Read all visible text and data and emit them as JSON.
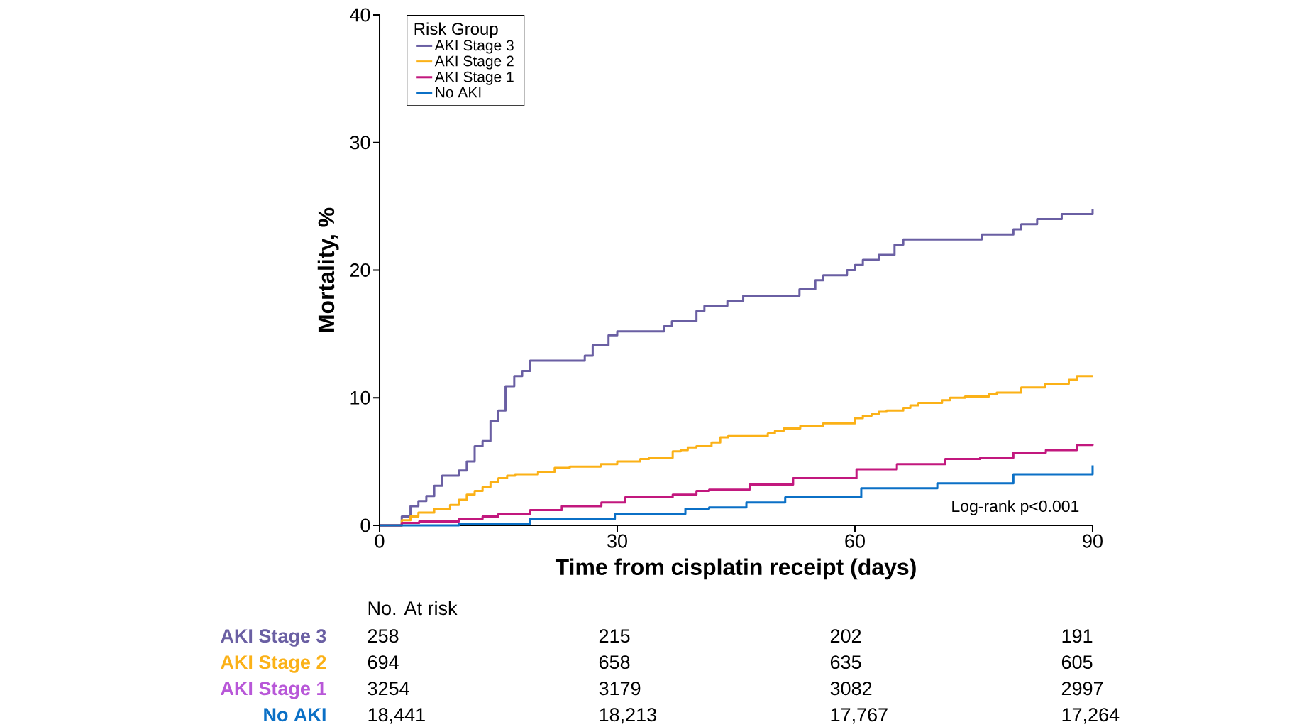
{
  "chart_data": {
    "type": "step",
    "xlabel": "Time from cisplatin receipt (days)",
    "ylabel": "Mortality, %",
    "legend_title": "Risk Group",
    "legend": "top left",
    "xlim": [
      0,
      90
    ],
    "ylim": [
      0,
      40
    ],
    "xticks": [
      0,
      30,
      60,
      90
    ],
    "yticks": [
      0,
      10,
      20,
      30,
      40
    ],
    "series": [
      {
        "name": "AKI Stage 3",
        "color": "#6a5fa3",
        "x": [
          0,
          2.8,
          3.9,
          4.9,
          5.9,
          6.9,
          7.9,
          10,
          11,
          12,
          13,
          14,
          15,
          15.9,
          17,
          18,
          19,
          25.9,
          26.9,
          28.9,
          30,
          35.9,
          36.9,
          40,
          41,
          43.9,
          45.9,
          53,
          55,
          56,
          59,
          60,
          61,
          63,
          65,
          66.1,
          76,
          80,
          81,
          83,
          86.1,
          90
        ],
        "values": [
          0,
          0.7,
          1.5,
          1.9,
          2.3,
          3.1,
          3.9,
          4.3,
          5.0,
          6.2,
          6.6,
          8.2,
          9.0,
          10.9,
          11.7,
          12.1,
          12.9,
          13.3,
          14.1,
          14.9,
          15.2,
          15.6,
          16.0,
          16.8,
          17.2,
          17.6,
          18.0,
          18.5,
          19.2,
          19.6,
          20.0,
          20.4,
          20.8,
          21.2,
          22.0,
          22.4,
          22.8,
          23.2,
          23.6,
          24.0,
          24.4,
          24.8
        ]
      },
      {
        "name": "AKI Stage 2",
        "color": "#fbb117",
        "x": [
          0,
          2.8,
          3.9,
          4.9,
          6.9,
          8.9,
          10,
          11,
          12,
          13,
          14,
          15,
          16.1,
          17.1,
          20,
          22.1,
          24,
          27.9,
          30,
          32.9,
          34,
          37,
          38,
          38.9,
          40,
          41.9,
          43,
          44,
          49,
          49.9,
          51,
          53.1,
          56,
          60,
          61,
          62.1,
          63,
          64,
          66.1,
          67,
          68,
          71,
          72,
          73.9,
          76.9,
          77.9,
          81,
          84,
          87,
          88,
          90
        ],
        "values": [
          0,
          0.4,
          0.7,
          1.0,
          1.3,
          1.6,
          2.0,
          2.4,
          2.7,
          3.0,
          3.4,
          3.7,
          3.9,
          4.0,
          4.2,
          4.5,
          4.6,
          4.8,
          5.0,
          5.2,
          5.3,
          5.8,
          5.9,
          6.1,
          6.2,
          6.5,
          6.9,
          7.0,
          7.2,
          7.4,
          7.6,
          7.8,
          8.0,
          8.4,
          8.6,
          8.7,
          8.9,
          9.0,
          9.2,
          9.4,
          9.6,
          9.8,
          10.0,
          10.1,
          10.3,
          10.4,
          10.8,
          11.1,
          11.4,
          11.7,
          11.7
        ]
      },
      {
        "name": "AKI Stage 1",
        "color": "#c2187e",
        "x": [
          0,
          2.8,
          5,
          10,
          13,
          15,
          19,
          23,
          28,
          31,
          37,
          40,
          41.6,
          46.7,
          52.2,
          60.2,
          65.3,
          71.4,
          75.8,
          80,
          84.1,
          88,
          90
        ],
        "values": [
          0,
          0.2,
          0.3,
          0.5,
          0.7,
          0.9,
          1.2,
          1.5,
          1.8,
          2.2,
          2.4,
          2.7,
          2.8,
          3.2,
          3.7,
          4.4,
          4.8,
          5.2,
          5.3,
          5.7,
          5.9,
          6.3,
          6.4
        ]
      },
      {
        "name": "No AKI",
        "color": "#0b70c6",
        "x": [
          0,
          10,
          19,
          29.7,
          38.6,
          41.6,
          46.3,
          51.2,
          60.8,
          70.4,
          80,
          90
        ],
        "values": [
          0,
          0.1,
          0.5,
          0.9,
          1.3,
          1.4,
          1.8,
          2.2,
          2.9,
          3.3,
          4.0,
          4.7
        ]
      }
    ],
    "annotations": [
      "Log-rank p<0.001",
      "No. At risk",
      "AKI Stage 3",
      "258",
      "215",
      "202",
      "191",
      "AKI Stage 2",
      "694",
      "658",
      "635",
      "605",
      "AKI Stage 1",
      "3254",
      "3179",
      "3082",
      "2997",
      "No AKI",
      "18,441",
      "18,213",
      "17,767",
      "17,264"
    ]
  }
}
